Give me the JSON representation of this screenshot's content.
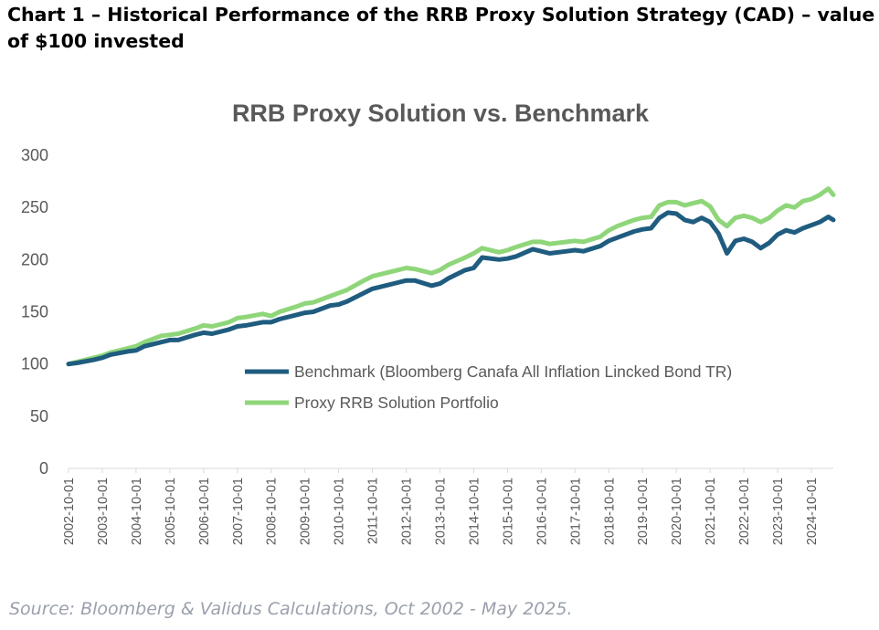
{
  "header": {
    "title": "Chart 1 – Historical Performance of the RRB Proxy Solution Strategy (CAD) – value of $100 invested"
  },
  "footer": {
    "source": "Source: Bloomberg & Validus Calculations, Oct 2002  - May 2025."
  },
  "colors": {
    "benchmark": "#1f5c7f",
    "proxy": "#8fd67a",
    "axis_text": "#595959",
    "source_text": "#9aa0ac"
  },
  "chart_data": {
    "type": "line",
    "title": "RRB Proxy Solution vs. Benchmark",
    "xlabel": "",
    "ylabel": "",
    "ylim": [
      0,
      300
    ],
    "yticks": [
      0,
      50,
      100,
      150,
      200,
      250,
      300
    ],
    "xlim": [
      2002.75,
      2025.4
    ],
    "x_tick_labels": [
      "2002-10-01",
      "2003-10-01",
      "2004-10-01",
      "2005-10-01",
      "2006-10-01",
      "2007-10-01",
      "2008-10-01",
      "2009-10-01",
      "2010-10-01",
      "2011-10-01",
      "2012-10-01",
      "2013-10-01",
      "2014-10-01",
      "2015-10-01",
      "2016-10-01",
      "2017-10-01",
      "2018-10-01",
      "2019-10-01",
      "2020-10-01",
      "2021-10-01",
      "2022-10-01",
      "2023-10-01",
      "2024-10-01"
    ],
    "grid": false,
    "legend_position": "center-right",
    "series": [
      {
        "name": "Benchmark (Bloomberg Canafa All Inflation Lincked Bond TR)",
        "x": [
          2002.75,
          2003.0,
          2003.5,
          2003.75,
          2004.0,
          2004.5,
          2004.75,
          2005.0,
          2005.5,
          2005.75,
          2006.0,
          2006.5,
          2006.75,
          2007.0,
          2007.5,
          2007.75,
          2008.0,
          2008.5,
          2008.75,
          2009.0,
          2009.5,
          2009.75,
          2010.0,
          2010.5,
          2010.75,
          2011.0,
          2011.5,
          2011.75,
          2012.0,
          2012.5,
          2012.75,
          2013.0,
          2013.5,
          2013.75,
          2014.0,
          2014.5,
          2014.75,
          2015.0,
          2015.5,
          2015.75,
          2016.0,
          2016.5,
          2016.75,
          2017.0,
          2017.5,
          2017.75,
          2018.0,
          2018.5,
          2018.75,
          2019.0,
          2019.5,
          2019.75,
          2020.0,
          2020.25,
          2020.5,
          2020.75,
          2021.0,
          2021.25,
          2021.5,
          2021.75,
          2022.0,
          2022.25,
          2022.5,
          2022.75,
          2023.0,
          2023.25,
          2023.5,
          2023.75,
          2024.0,
          2024.25,
          2024.5,
          2024.75,
          2025.0,
          2025.25,
          2025.4
        ],
        "values": [
          100,
          101,
          104,
          106,
          109,
          112,
          113,
          117,
          121,
          123,
          123,
          128,
          130,
          129,
          133,
          136,
          137,
          140,
          140,
          143,
          147,
          149,
          150,
          156,
          157,
          160,
          168,
          172,
          174,
          178,
          180,
          180,
          175,
          177,
          182,
          190,
          192,
          202,
          200,
          201,
          203,
          210,
          208,
          206,
          208,
          209,
          208,
          213,
          218,
          221,
          227,
          229,
          230,
          240,
          245,
          244,
          238,
          236,
          240,
          236,
          225,
          206,
          218,
          220,
          217,
          211,
          216,
          224,
          228,
          226,
          230,
          233,
          236,
          241,
          238
        ]
      },
      {
        "name": "Proxy RRB Solution Portfolio",
        "x": [
          2002.75,
          2003.0,
          2003.5,
          2003.75,
          2004.0,
          2004.5,
          2004.75,
          2005.0,
          2005.5,
          2005.75,
          2006.0,
          2006.5,
          2006.75,
          2007.0,
          2007.5,
          2007.75,
          2008.0,
          2008.5,
          2008.75,
          2009.0,
          2009.5,
          2009.75,
          2010.0,
          2010.5,
          2010.75,
          2011.0,
          2011.5,
          2011.75,
          2012.0,
          2012.5,
          2012.75,
          2013.0,
          2013.5,
          2013.75,
          2014.0,
          2014.5,
          2014.75,
          2015.0,
          2015.5,
          2015.75,
          2016.0,
          2016.5,
          2016.75,
          2017.0,
          2017.5,
          2017.75,
          2018.0,
          2018.5,
          2018.75,
          2019.0,
          2019.5,
          2019.75,
          2020.0,
          2020.25,
          2020.5,
          2020.75,
          2021.0,
          2021.25,
          2021.5,
          2021.75,
          2022.0,
          2022.25,
          2022.5,
          2022.75,
          2023.0,
          2023.25,
          2023.5,
          2023.75,
          2024.0,
          2024.25,
          2024.5,
          2024.75,
          2025.0,
          2025.25,
          2025.4
        ],
        "values": [
          100,
          102,
          106,
          108,
          111,
          115,
          117,
          121,
          127,
          128,
          129,
          134,
          137,
          136,
          140,
          144,
          145,
          148,
          146,
          150,
          155,
          158,
          159,
          165,
          168,
          171,
          180,
          184,
          186,
          190,
          192,
          191,
          187,
          190,
          195,
          202,
          206,
          211,
          207,
          209,
          212,
          217,
          217,
          215,
          217,
          218,
          217,
          222,
          228,
          232,
          238,
          240,
          241,
          252,
          255,
          255,
          252,
          254,
          256,
          251,
          238,
          232,
          240,
          242,
          240,
          236,
          240,
          247,
          252,
          250,
          256,
          258,
          262,
          268,
          262
        ]
      }
    ]
  }
}
